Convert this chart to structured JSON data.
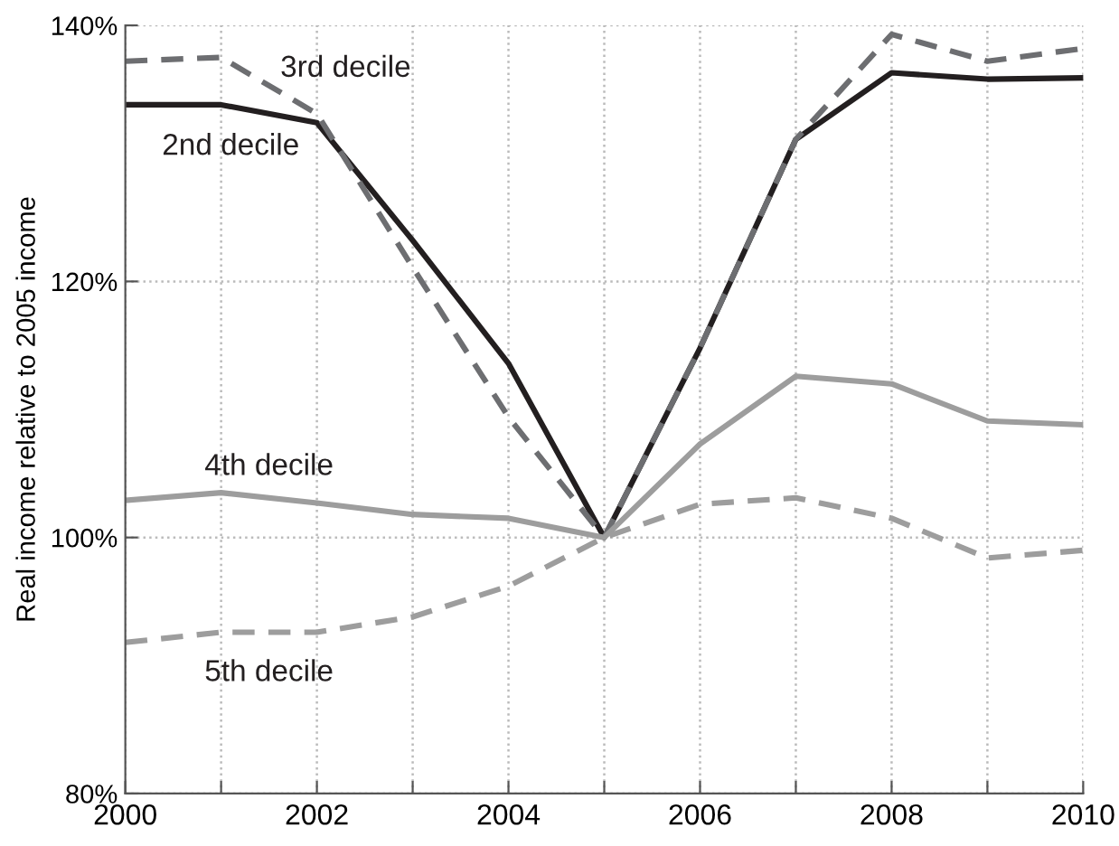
{
  "chart_data": {
    "type": "line",
    "ylabel": "Real income relative to 2005 income",
    "x": [
      2000,
      2001,
      2002,
      2003,
      2004,
      2005,
      2006,
      2007,
      2008,
      2009,
      2010
    ],
    "series": [
      {
        "name": "2nd decile",
        "color": "#231f20",
        "line_style": "solid",
        "values": [
          133.8,
          133.8,
          132.4,
          123.2,
          113.6,
          100,
          114.8,
          131.1,
          136.3,
          135.8,
          135.9
        ]
      },
      {
        "name": "3rd decile",
        "color": "#6d6e71",
        "line_style": "dashed",
        "values": [
          137.2,
          137.5,
          133.1,
          121.1,
          109.4,
          100,
          114.8,
          131.1,
          139.3,
          137.2,
          138.2
        ]
      },
      {
        "name": "4th decile",
        "color": "#9d9d9d",
        "line_style": "solid",
        "values": [
          102.9,
          103.5,
          102.7,
          101.8,
          101.5,
          100,
          107.3,
          112.6,
          112.0,
          109.1,
          108.8
        ]
      },
      {
        "name": "5th decile",
        "color": "#9d9d9d",
        "line_style": "dashed",
        "values": [
          91.8,
          92.6,
          92.6,
          93.8,
          96.2,
          100,
          102.6,
          103.1,
          101.5,
          98.4,
          99.0
        ]
      }
    ],
    "xlim": [
      2000,
      2010
    ],
    "xticks": [
      2000,
      {
        "value": 2001,
        "label": null
      },
      2002,
      {
        "value": 2003,
        "label": null
      },
      2004,
      {
        "value": 2005,
        "label": null
      },
      2006,
      {
        "value": 2007,
        "label": null
      },
      2008,
      {
        "value": 2009,
        "label": null
      },
      2010
    ],
    "ylim": [
      80,
      140
    ],
    "yticks": [
      {
        "value": 80,
        "label": "80%"
      },
      {
        "value": 100,
        "label": "100%"
      },
      {
        "value": 120,
        "label": "120%"
      },
      {
        "value": 140,
        "label": "140%"
      }
    ],
    "grid": true,
    "marker": "none",
    "legend": false
  }
}
